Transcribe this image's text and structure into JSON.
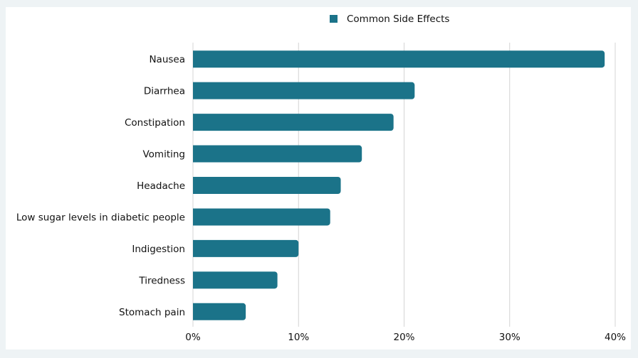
{
  "chart_data": {
    "type": "bar",
    "orientation": "horizontal",
    "categories": [
      "Nausea",
      "Diarrhea",
      "Constipation",
      "Vomiting",
      "Headache",
      "Low sugar levels in diabetic people",
      "Indigestion",
      "Tiredness",
      "Stomach pain"
    ],
    "series": [
      {
        "name": "Common Side Effects",
        "values": [
          39,
          21,
          19,
          16,
          14,
          13,
          10,
          8,
          5
        ]
      }
    ],
    "xlim": [
      0,
      40
    ],
    "xticks": [
      "0%",
      "10%",
      "20%",
      "30%",
      "40%"
    ],
    "xtick_values": [
      0,
      10,
      20,
      30,
      40
    ],
    "grid": "vertical",
    "legend": "top-center",
    "color": "#1b7389"
  }
}
